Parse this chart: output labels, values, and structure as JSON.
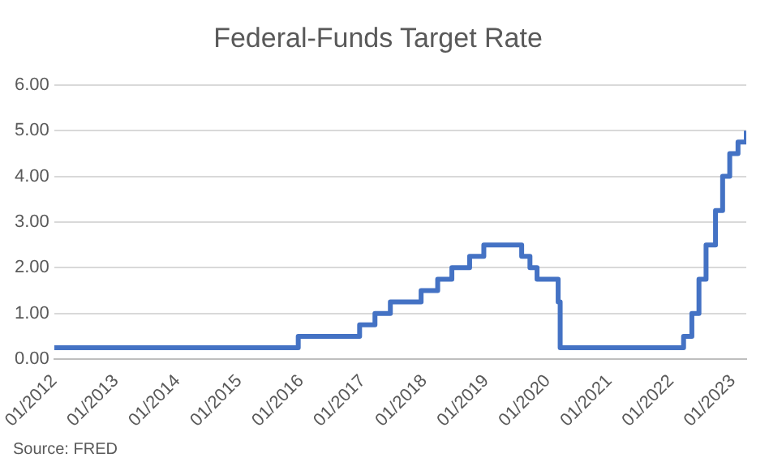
{
  "chart_data": {
    "type": "step",
    "title": "Federal-Funds Target Rate",
    "annotations": [
      "Source: FRED"
    ],
    "x": [
      "2012-01",
      "2015-12-16",
      "2016-12-14",
      "2017-03-15",
      "2017-06-14",
      "2017-12-13",
      "2018-03-21",
      "2018-06-13",
      "2018-09-26",
      "2018-12-19",
      "2019-07-31",
      "2019-09-18",
      "2019-10-30",
      "2020-03-03",
      "2020-03-15",
      "2022-03-16",
      "2022-05-04",
      "2022-06-15",
      "2022-07-27",
      "2022-09-21",
      "2022-11-02",
      "2022-12-14",
      "2023-02-01",
      "2023-03-22"
    ],
    "series": [
      {
        "color": "#4472c4",
        "values": [
          0.25,
          0.5,
          0.75,
          1.0,
          1.25,
          1.5,
          1.75,
          2.0,
          2.25,
          2.5,
          2.25,
          2.0,
          1.75,
          1.25,
          0.25,
          0.5,
          1.0,
          1.75,
          2.5,
          3.25,
          4.0,
          4.5,
          4.75,
          5.0
        ]
      }
    ],
    "xlim": [
      "2012-01",
      "2023-03-22"
    ],
    "xticks": [
      {
        "value": "2012-01",
        "label": "01/2012"
      },
      {
        "value": "2013-01",
        "label": "01/2013"
      },
      {
        "value": "2014-01",
        "label": "01/2014"
      },
      {
        "value": "2015-01",
        "label": "01/2015"
      },
      {
        "value": "2016-01",
        "label": "01/2016"
      },
      {
        "value": "2017-01",
        "label": "01/2017"
      },
      {
        "value": "2018-01",
        "label": "01/2018"
      },
      {
        "value": "2019-01",
        "label": "01/2019"
      },
      {
        "value": "2020-01",
        "label": "01/2020"
      },
      {
        "value": "2021-01",
        "label": "01/2021"
      },
      {
        "value": "2022-01",
        "label": "01/2022"
      },
      {
        "value": "2023-01",
        "label": "01/2023"
      }
    ],
    "ylim": [
      0,
      6
    ],
    "yticks": [
      {
        "value": 0,
        "label": "0.00"
      },
      {
        "value": 1,
        "label": "1.00"
      },
      {
        "value": 2,
        "label": "2.00"
      },
      {
        "value": 3,
        "label": "3.00"
      },
      {
        "value": 4,
        "label": "4.00"
      },
      {
        "value": 5,
        "label": "5.00"
      },
      {
        "value": 6,
        "label": "6.00"
      }
    ],
    "grid": "y",
    "legend": false,
    "marker": "none",
    "line_style": "solid"
  }
}
